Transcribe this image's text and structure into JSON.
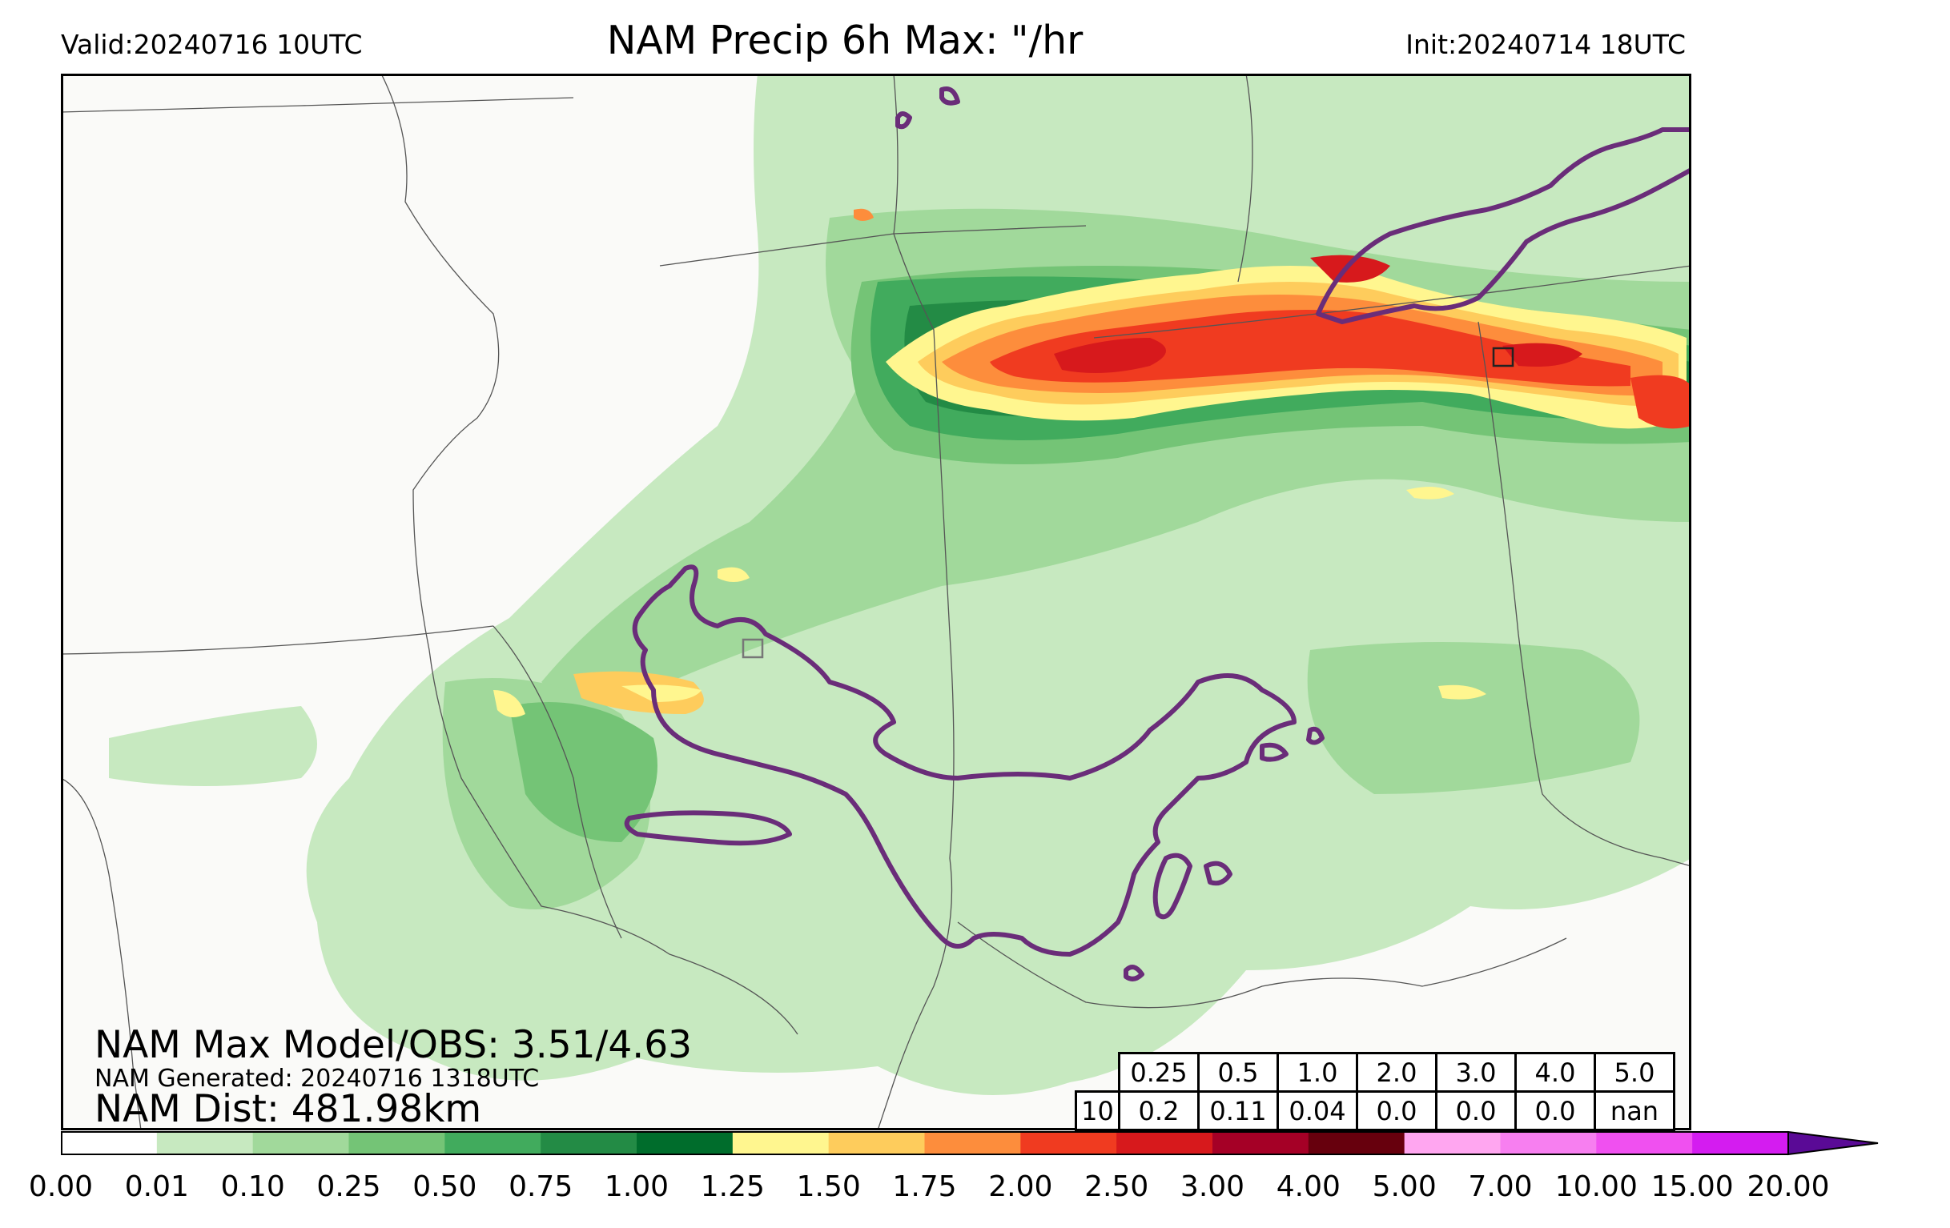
{
  "header": {
    "valid": "Valid:20240716 10UTC",
    "title": "NAM Precip 6h Max: \"/hr",
    "init": "Init:20240714 18UTC"
  },
  "stats": {
    "max_model_obs": "NAM Max Model/OBS: 3.51/4.63",
    "generated": "NAM Generated: 20240716 1318UTC",
    "distance": "NAM Dist: 481.98km"
  },
  "threshold_table": {
    "thresholds": [
      "0.25",
      "0.5",
      "1.0",
      "2.0",
      "3.0",
      "4.0",
      "5.0"
    ],
    "row_label": "10",
    "values": [
      "0.2",
      "0.11",
      "0.04",
      "0.0",
      "0.0",
      "0.0",
      "nan"
    ]
  },
  "colorbar": {
    "ticks": [
      "0.00",
      "0.01",
      "0.10",
      "0.25",
      "0.50",
      "0.75",
      "1.00",
      "1.25",
      "1.50",
      "1.75",
      "2.00",
      "2.50",
      "3.00",
      "4.00",
      "5.00",
      "7.00",
      "10.00",
      "15.00",
      "20.00"
    ],
    "colors": [
      "#ffffff",
      "#c7e9c0",
      "#a1d99b",
      "#74c476",
      "#41ab5d",
      "#238b45",
      "#006d2c",
      "#fff68f",
      "#fecc5c",
      "#fd8d3c",
      "#f03b20",
      "#d7191c",
      "#a50026",
      "#67000d",
      "#ffa6f0",
      "#f77ff0",
      "#f050f0",
      "#d41cf0",
      "#9c10d8"
    ],
    "extend_color": "#5a0a96"
  },
  "map": {
    "background": "#fafaf8",
    "border_color": "#555555",
    "obs_contour_color": "#6a2d79"
  }
}
